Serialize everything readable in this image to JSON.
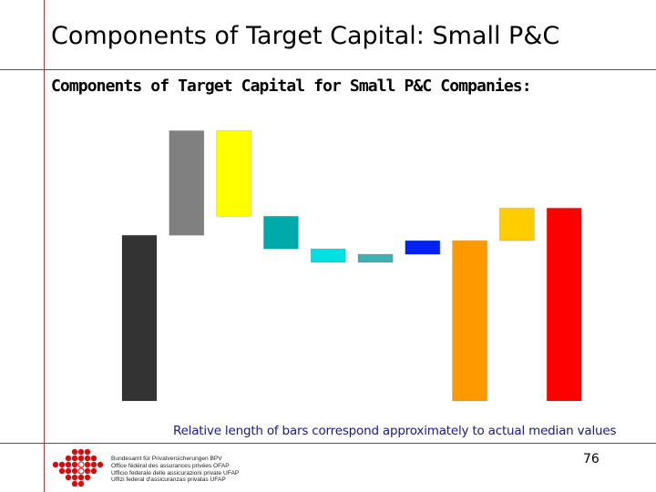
{
  "page": {
    "title": "Components of Target Capital: Small P&C",
    "page_number": "76"
  },
  "footer": {
    "org_lines": [
      "Bundesamt für Privatversicherungen BPV",
      "Office fédéral des assurances privées OFAP",
      "Ufficio federale delle assicurazioni private UFAP",
      "Uffizi federal d'assicuranzas privatas UFAP"
    ]
  },
  "chart_data": {
    "type": "bar",
    "subtitle_style": "waterfall",
    "title": "Components of Target Capital for Small P&C Companies:",
    "caption": "Relative length of bars correspond approximately to actual median values",
    "ylim": [
      0,
      100
    ],
    "bars": [
      {
        "start": 0,
        "end": 61,
        "color": "#333333"
      },
      {
        "start": 61,
        "end": 99.5,
        "color": "#808080"
      },
      {
        "start": 68,
        "end": 99.5,
        "color": "#ffff00"
      },
      {
        "start": 56,
        "end": 68,
        "color": "#00aaaa"
      },
      {
        "start": 51,
        "end": 56,
        "color": "#00e0e0"
      },
      {
        "start": 51,
        "end": 54,
        "color": "#40b0b0"
      },
      {
        "start": 54,
        "end": 59,
        "color": "#0022ee"
      },
      {
        "start": 0,
        "end": 59,
        "color": "#ff9900"
      },
      {
        "start": 59,
        "end": 71,
        "color": "#ffcc00"
      },
      {
        "start": 0,
        "end": 71,
        "color": "#ff0000"
      }
    ]
  }
}
